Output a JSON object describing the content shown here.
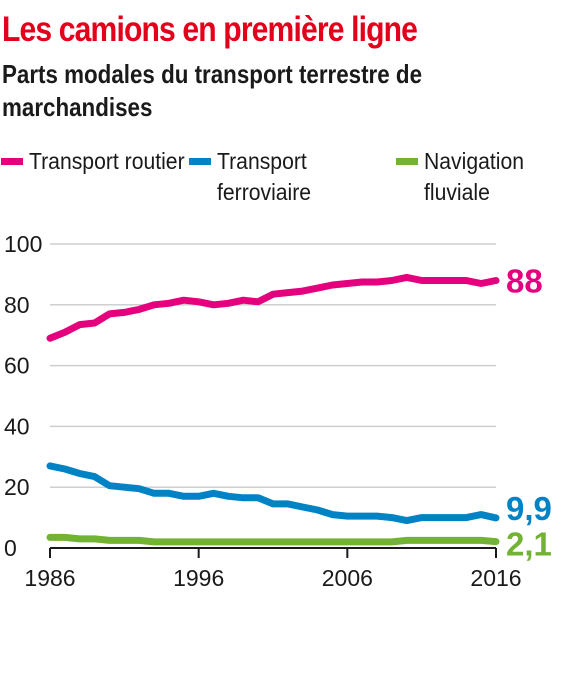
{
  "title": "Les camions en première ligne",
  "subtitle": "Parts modales du transport terrestre de marchandises",
  "legend": [
    {
      "label": "Transport routier",
      "color": "#e5007e"
    },
    {
      "label": "Transport ferroviaire",
      "color": "#0083c4"
    },
    {
      "label": "Navigation fluviale",
      "color": "#73b334"
    }
  ],
  "chart_data": {
    "type": "line",
    "title": "Les camions en première ligne",
    "subtitle": "Parts modales du transport terrestre de marchandises",
    "xlabel": "",
    "ylabel": "",
    "xlim": [
      1986,
      2016
    ],
    "ylim": [
      0,
      100
    ],
    "x_ticks": [
      "1986",
      "1996",
      "2006",
      "2016"
    ],
    "y_ticks": [
      "0",
      "20",
      "40",
      "60",
      "80",
      "100"
    ],
    "grid": true,
    "legend_position": "top",
    "x": [
      1986,
      1987,
      1988,
      1989,
      1990,
      1991,
      1992,
      1993,
      1994,
      1995,
      1996,
      1997,
      1998,
      1999,
      2000,
      2001,
      2002,
      2003,
      2004,
      2005,
      2006,
      2007,
      2008,
      2009,
      2010,
      2011,
      2012,
      2013,
      2014,
      2015,
      2016
    ],
    "series": [
      {
        "name": "Transport routier",
        "color": "#e5007e",
        "values": [
          69,
          71,
          73.5,
          74,
          77,
          77.5,
          78.5,
          80,
          80.5,
          81.5,
          81,
          80,
          80.5,
          81.5,
          81,
          83.5,
          84,
          84.5,
          85.5,
          86.5,
          87,
          87.5,
          87.5,
          88,
          89,
          88,
          88,
          88,
          88,
          87,
          88
        ]
      },
      {
        "name": "Transport ferroviaire",
        "color": "#0083c4",
        "values": [
          27,
          26,
          24.5,
          23.5,
          20.5,
          20,
          19.5,
          18,
          18,
          17,
          17,
          18,
          17,
          16.5,
          16.5,
          14.5,
          14.5,
          13.5,
          12.5,
          11,
          10.5,
          10.5,
          10.5,
          10,
          9,
          10,
          10,
          10,
          10,
          11,
          9.9
        ]
      },
      {
        "name": "Navigation fluviale",
        "color": "#73b334",
        "values": [
          3.5,
          3.5,
          3,
          3,
          2.5,
          2.5,
          2.5,
          2,
          2,
          2,
          2,
          2,
          2,
          2,
          2,
          2,
          2,
          2,
          2,
          2,
          2,
          2,
          2,
          2,
          2.5,
          2.5,
          2.5,
          2.5,
          2.5,
          2.5,
          2.1
        ]
      }
    ],
    "end_labels": [
      "88",
      "9,9",
      "2,1"
    ]
  }
}
